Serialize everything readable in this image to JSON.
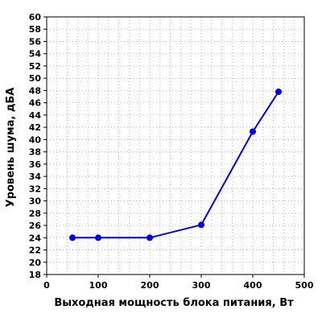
{
  "chart_data": {
    "type": "line",
    "xlabel": "Выходная мощность блока питания, Вт",
    "ylabel": "Уровень шума, дБА",
    "xlim": [
      0,
      500
    ],
    "ylim": [
      18,
      60
    ],
    "x_ticks": [
      0,
      100,
      200,
      300,
      400,
      500
    ],
    "y_ticks": [
      18,
      20,
      22,
      24,
      26,
      28,
      30,
      32,
      34,
      36,
      38,
      40,
      42,
      44,
      46,
      48,
      50,
      52,
      54,
      56,
      58,
      60
    ],
    "grid": true,
    "series": [
      {
        "color": "#0000e6",
        "x": [
          50,
          100,
          200,
          300,
          400,
          450
        ],
        "y": [
          24.0,
          24.0,
          24.0,
          26.1,
          41.3,
          47.8
        ]
      }
    ]
  }
}
